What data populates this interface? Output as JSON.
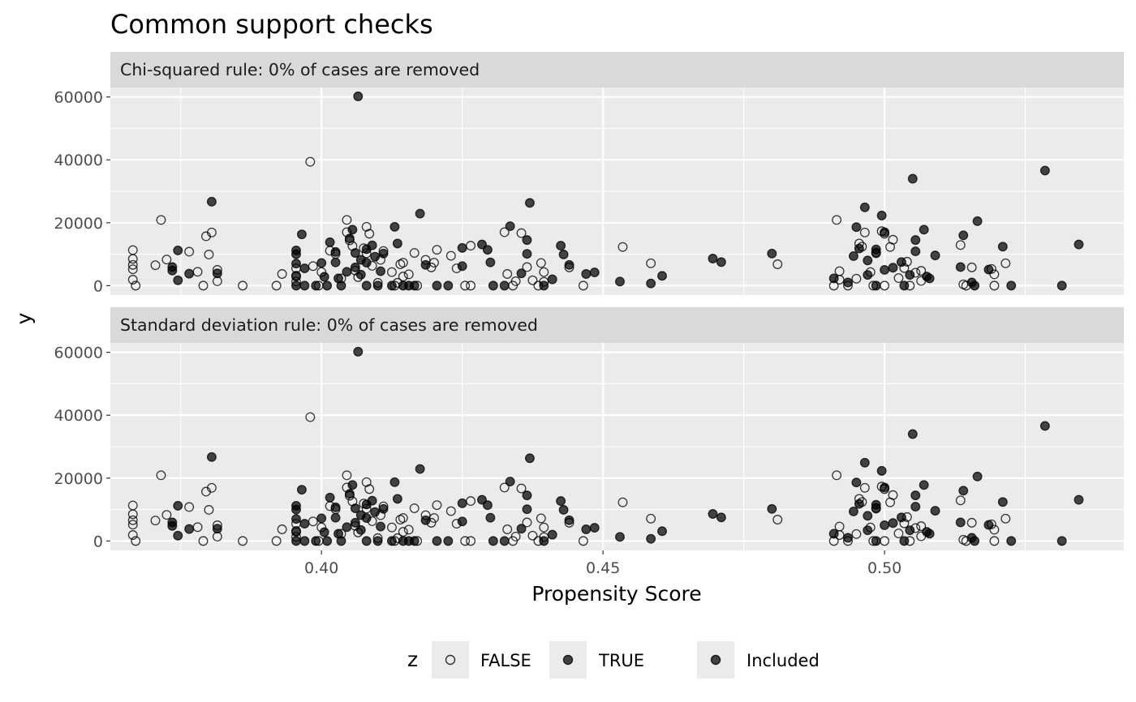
{
  "chart_data": {
    "type": "scatter",
    "title": "Common support checks",
    "xlabel": "Propensity Score",
    "ylabel": "y",
    "xlim": [
      0.3625,
      0.5425
    ],
    "ylim": [
      -3000,
      63000
    ],
    "x_ticks": [
      0.4,
      0.45,
      0.5
    ],
    "x_tick_labels": [
      "0.40",
      "0.45",
      "0.50"
    ],
    "y_ticks": [
      0,
      20000,
      40000,
      60000
    ],
    "y_tick_labels": [
      "0",
      "20000",
      "40000",
      "60000"
    ],
    "grid": true,
    "legend": {
      "position": "bottom",
      "title": "z",
      "entries": [
        {
          "label": "FALSE",
          "fill": "none"
        },
        {
          "label": "TRUE",
          "fill": "#000000"
        },
        {
          "label": "Included",
          "fill": "#000000"
        }
      ]
    },
    "panels": [
      {
        "strip": "Chi-squared rule: 0% of cases are removed"
      },
      {
        "strip": "Standard deviation rule: 0% of cases are removed"
      }
    ],
    "series": [
      {
        "name": "FALSE",
        "points": [
          [
            0.3665,
            11300
          ],
          [
            0.3665,
            8500
          ],
          [
            0.3665,
            6600
          ],
          [
            0.3665,
            5200
          ],
          [
            0.3665,
            1900
          ],
          [
            0.367,
            0
          ],
          [
            0.3705,
            6500
          ],
          [
            0.3715,
            20900
          ],
          [
            0.3725,
            8300
          ],
          [
            0.3765,
            10800
          ],
          [
            0.378,
            4400
          ],
          [
            0.379,
            0
          ],
          [
            0.3795,
            15700
          ],
          [
            0.38,
            9900
          ],
          [
            0.3805,
            16900
          ],
          [
            0.3815,
            1400
          ],
          [
            0.3815,
            5000
          ],
          [
            0.386,
            0
          ],
          [
            0.392,
            0
          ],
          [
            0.393,
            3700
          ],
          [
            0.3955,
            5500
          ],
          [
            0.3955,
            3200
          ],
          [
            0.3955,
            1300
          ],
          [
            0.398,
            39400
          ],
          [
            0.3985,
            6200
          ],
          [
            0.3995,
            0
          ],
          [
            0.4,
            4300
          ],
          [
            0.4015,
            11100
          ],
          [
            0.4025,
            10100
          ],
          [
            0.4035,
            2300
          ],
          [
            0.4045,
            20900
          ],
          [
            0.4045,
            17000
          ],
          [
            0.405,
            14400
          ],
          [
            0.4055,
            12600
          ],
          [
            0.406,
            4800
          ],
          [
            0.4065,
            2700
          ],
          [
            0.4075,
            11900
          ],
          [
            0.408,
            18700
          ],
          [
            0.408,
            10300
          ],
          [
            0.4085,
            16500
          ],
          [
            0.409,
            6300
          ],
          [
            0.41,
            900
          ],
          [
            0.4105,
            8200
          ],
          [
            0.411,
            11000
          ],
          [
            0.4125,
            4300
          ],
          [
            0.413,
            0
          ],
          [
            0.4135,
            900
          ],
          [
            0.414,
            6800
          ],
          [
            0.4145,
            2900
          ],
          [
            0.4145,
            7300
          ],
          [
            0.4155,
            3600
          ],
          [
            0.4165,
            10400
          ],
          [
            0.417,
            0
          ],
          [
            0.4185,
            8200
          ],
          [
            0.4195,
            5800
          ],
          [
            0.42,
            7300
          ],
          [
            0.4205,
            11400
          ],
          [
            0.423,
            9500
          ],
          [
            0.424,
            5500
          ],
          [
            0.4255,
            0
          ],
          [
            0.4265,
            0
          ],
          [
            0.4265,
            12700
          ],
          [
            0.4325,
            17000
          ],
          [
            0.433,
            3700
          ],
          [
            0.434,
            0
          ],
          [
            0.4345,
            1400
          ],
          [
            0.4355,
            16700
          ],
          [
            0.4365,
            5900
          ],
          [
            0.4375,
            1700
          ],
          [
            0.4385,
            0
          ],
          [
            0.439,
            7200
          ],
          [
            0.4395,
            4300
          ],
          [
            0.4395,
            1200
          ],
          [
            0.444,
            5800
          ],
          [
            0.4465,
            0
          ],
          [
            0.4535,
            12300
          ],
          [
            0.4585,
            7100
          ],
          [
            0.481,
            6800
          ],
          [
            0.491,
            0
          ],
          [
            0.4915,
            20900
          ],
          [
            0.492,
            4600
          ],
          [
            0.492,
            1900
          ],
          [
            0.4935,
            0
          ],
          [
            0.495,
            2200
          ],
          [
            0.4955,
            13400
          ],
          [
            0.496,
            12400
          ],
          [
            0.4965,
            16900
          ],
          [
            0.4975,
            4300
          ],
          [
            0.498,
            0
          ],
          [
            0.4985,
            10500
          ],
          [
            0.4995,
            17300
          ],
          [
            0.5,
            16500
          ],
          [
            0.5,
            0
          ],
          [
            0.501,
            12300
          ],
          [
            0.5015,
            14600
          ],
          [
            0.5025,
            2400
          ],
          [
            0.5035,
            5600
          ],
          [
            0.504,
            7600
          ],
          [
            0.5045,
            0
          ],
          [
            0.5055,
            4100
          ],
          [
            0.5065,
            4700
          ],
          [
            0.5065,
            1500
          ],
          [
            0.5135,
            12900
          ],
          [
            0.514,
            400
          ],
          [
            0.5145,
            0
          ],
          [
            0.5155,
            5800
          ],
          [
            0.519,
            5300
          ],
          [
            0.5195,
            3600
          ],
          [
            0.5195,
            0
          ],
          [
            0.5215,
            7100
          ]
        ]
      },
      {
        "name": "TRUE",
        "points": [
          [
            0.3735,
            5900
          ],
          [
            0.3735,
            4800
          ],
          [
            0.3745,
            11200
          ],
          [
            0.3745,
            1700
          ],
          [
            0.3765,
            3800
          ],
          [
            0.3805,
            26700
          ],
          [
            0.3815,
            3900
          ],
          [
            0.3955,
            11200
          ],
          [
            0.3955,
            10000
          ],
          [
            0.3955,
            7000
          ],
          [
            0.3955,
            2900
          ],
          [
            0.3955,
            0
          ],
          [
            0.3965,
            16300
          ],
          [
            0.397,
            5500
          ],
          [
            0.397,
            0
          ],
          [
            0.399,
            0
          ],
          [
            0.4,
            7200
          ],
          [
            0.4005,
            2800
          ],
          [
            0.401,
            0
          ],
          [
            0.4015,
            13800
          ],
          [
            0.4025,
            10700
          ],
          [
            0.4025,
            7400
          ],
          [
            0.403,
            2300
          ],
          [
            0.4035,
            0
          ],
          [
            0.4045,
            4400
          ],
          [
            0.405,
            15000
          ],
          [
            0.4055,
            17800
          ],
          [
            0.406,
            10400
          ],
          [
            0.406,
            5800
          ],
          [
            0.4065,
            60200
          ],
          [
            0.407,
            8200
          ],
          [
            0.407,
            3500
          ],
          [
            0.408,
            11600
          ],
          [
            0.408,
            7300
          ],
          [
            0.408,
            0
          ],
          [
            0.409,
            12800
          ],
          [
            0.4095,
            9200
          ],
          [
            0.41,
            0
          ],
          [
            0.4105,
            4600
          ],
          [
            0.411,
            10200
          ],
          [
            0.4125,
            0
          ],
          [
            0.413,
            18700
          ],
          [
            0.4135,
            13400
          ],
          [
            0.4145,
            0
          ],
          [
            0.4155,
            0
          ],
          [
            0.4165,
            0
          ],
          [
            0.4175,
            22900
          ],
          [
            0.4185,
            6600
          ],
          [
            0.4205,
            0
          ],
          [
            0.4225,
            0
          ],
          [
            0.425,
            12000
          ],
          [
            0.425,
            6200
          ],
          [
            0.4285,
            13100
          ],
          [
            0.4295,
            11400
          ],
          [
            0.43,
            7400
          ],
          [
            0.4305,
            0
          ],
          [
            0.4325,
            0
          ],
          [
            0.4335,
            18900
          ],
          [
            0.4355,
            3900
          ],
          [
            0.4365,
            14500
          ],
          [
            0.4365,
            10100
          ],
          [
            0.437,
            26300
          ],
          [
            0.4395,
            0
          ],
          [
            0.441,
            2000
          ],
          [
            0.4425,
            12700
          ],
          [
            0.443,
            9900
          ],
          [
            0.444,
            6600
          ],
          [
            0.447,
            3700
          ],
          [
            0.4485,
            4200
          ],
          [
            0.453,
            1300
          ],
          [
            0.4585,
            700
          ],
          [
            0.4605,
            3100
          ],
          [
            0.4695,
            8600
          ],
          [
            0.471,
            7500
          ],
          [
            0.48,
            10200
          ],
          [
            0.491,
            2300
          ],
          [
            0.4935,
            1000
          ],
          [
            0.4945,
            9400
          ],
          [
            0.4955,
            11800
          ],
          [
            0.495,
            18600
          ],
          [
            0.4965,
            24900
          ],
          [
            0.497,
            8000
          ],
          [
            0.497,
            3400
          ],
          [
            0.4985,
            10300
          ],
          [
            0.4985,
            11500
          ],
          [
            0.4985,
            0
          ],
          [
            0.4995,
            22300
          ],
          [
            0.5,
            17000
          ],
          [
            0.5,
            5000
          ],
          [
            0.5015,
            5700
          ],
          [
            0.503,
            7500
          ],
          [
            0.5035,
            0
          ],
          [
            0.5045,
            3400
          ],
          [
            0.5055,
            14500
          ],
          [
            0.5055,
            10900
          ],
          [
            0.505,
            34000
          ],
          [
            0.507,
            17800
          ],
          [
            0.5075,
            2900
          ],
          [
            0.508,
            2300
          ],
          [
            0.509,
            9600
          ],
          [
            0.5135,
            5900
          ],
          [
            0.514,
            16000
          ],
          [
            0.5155,
            1000
          ],
          [
            0.516,
            0
          ],
          [
            0.5165,
            20500
          ],
          [
            0.5185,
            5100
          ],
          [
            0.521,
            12400
          ],
          [
            0.5225,
            0
          ],
          [
            0.5285,
            36600
          ],
          [
            0.5315,
            0
          ],
          [
            0.5345,
            13100
          ]
        ]
      }
    ]
  }
}
